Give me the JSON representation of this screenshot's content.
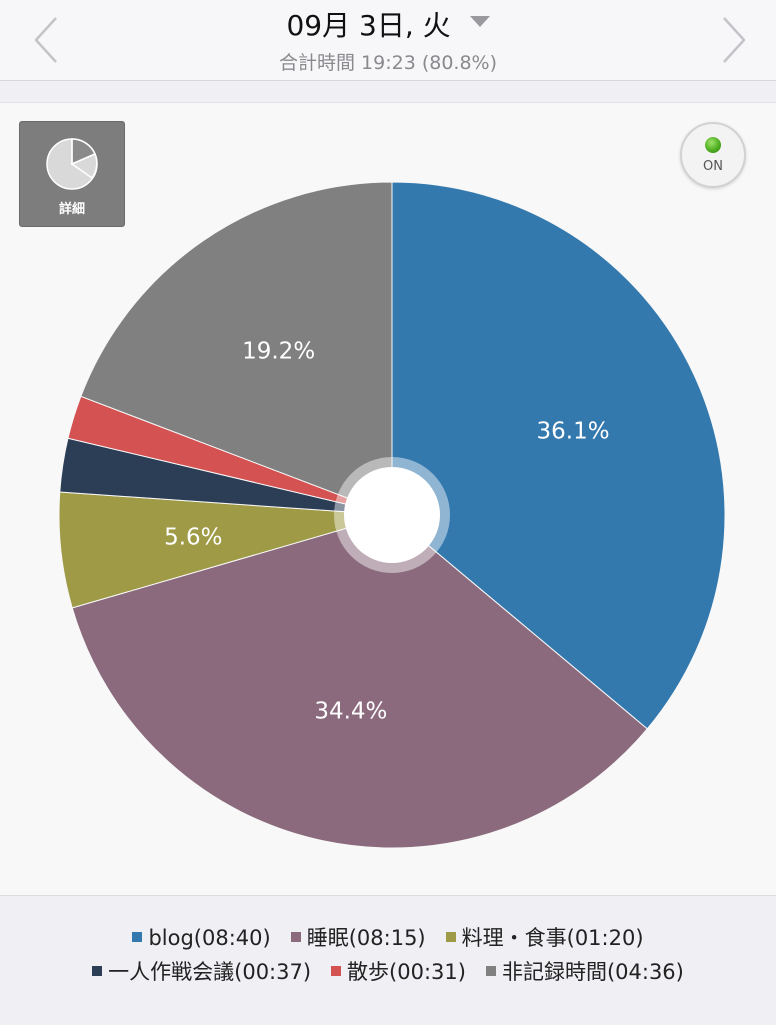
{
  "header": {
    "date_label": "09月 3日, 火",
    "subtitle": "合計時間 19:23 (80.8%)"
  },
  "controls": {
    "detail_label": "詳細",
    "toggle_label": "ON"
  },
  "colors": {
    "blog": "#3479ae",
    "sleep": "#8a6a7c",
    "cooking": "#9e9a46",
    "meeting": "#2c3d56",
    "walk": "#d45252",
    "unrecorded": "#808080"
  },
  "chart_data": {
    "type": "pie",
    "title": "",
    "donut_hole": true,
    "slices": [
      {
        "name": "blog",
        "time": "08:40",
        "value": 36.1,
        "label": "36.1%",
        "color": "#3479ae"
      },
      {
        "name": "睡眠",
        "time": "08:15",
        "value": 34.4,
        "label": "34.4%",
        "color": "#8a6a7c"
      },
      {
        "name": "料理・食事",
        "time": "01:20",
        "value": 5.6,
        "label": "5.6%",
        "color": "#9e9a46"
      },
      {
        "name": "一人作戦会議",
        "time": "00:37",
        "value": 2.6,
        "label": "",
        "color": "#2c3d56"
      },
      {
        "name": "散歩",
        "time": "00:31",
        "value": 2.1,
        "label": "",
        "color": "#d45252"
      },
      {
        "name": "非記録時間",
        "time": "04:36",
        "value": 19.2,
        "label": "19.2%",
        "color": "#808080"
      }
    ],
    "legend": {
      "placement": "bottom",
      "rows": [
        [
          {
            "text": "blog(08:40)",
            "color": "#3479ae"
          },
          {
            "text": "睡眠(08:15)",
            "color": "#8a6a7c"
          },
          {
            "text": "料理・食事(01:20)",
            "color": "#9e9a46"
          }
        ],
        [
          {
            "text": "一人作戦会議(00:37)",
            "color": "#2c3d56"
          },
          {
            "text": "散歩(00:31)",
            "color": "#d45252"
          },
          {
            "text": "非記録時間(04:36)",
            "color": "#808080"
          }
        ]
      ]
    }
  }
}
